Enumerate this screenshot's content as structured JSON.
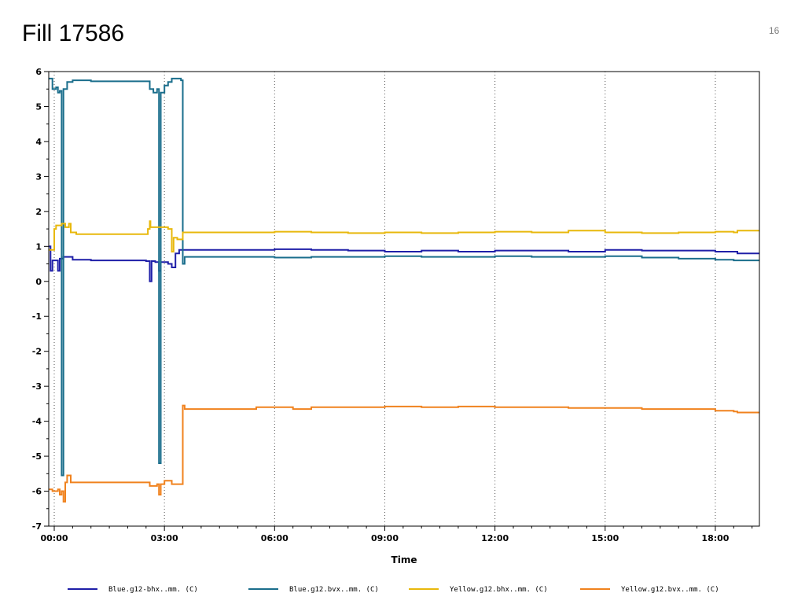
{
  "slide": {
    "title": "Fill 17586",
    "page_number": "16"
  },
  "chart_data": {
    "type": "line",
    "title": "",
    "xlabel": "Time",
    "ylabel": "",
    "x_unit": "hours",
    "xlim": [
      -0.15,
      19.2
    ],
    "ylim": [
      -7,
      6
    ],
    "x_ticks": [
      0,
      3,
      6,
      9,
      12,
      15,
      18
    ],
    "x_tick_labels": [
      "00:00",
      "03:00",
      "06:00",
      "09:00",
      "12:00",
      "15:00",
      "18:00"
    ],
    "y_ticks": [
      -7,
      -6,
      -5,
      -4,
      -3,
      -2,
      -1,
      0,
      1,
      2,
      3,
      4,
      5,
      6
    ],
    "y_tick_labels": [
      "-7",
      "-6",
      "-5",
      "-4",
      "-3",
      "-2",
      "-1",
      "0",
      "1",
      "2",
      "3",
      "4",
      "5",
      "6"
    ],
    "grid": "vertical-dotted",
    "legend_position": "bottom",
    "series": [
      {
        "name": "Blue.g12-bhx..mm. (C)",
        "color": "#1f1fa8",
        "points": [
          [
            -0.15,
            1.0
          ],
          [
            -0.1,
            0.3
          ],
          [
            -0.05,
            0.6
          ],
          [
            0.05,
            0.6
          ],
          [
            0.1,
            0.3
          ],
          [
            0.15,
            0.65
          ],
          [
            0.25,
            0.7
          ],
          [
            0.5,
            0.62
          ],
          [
            1.0,
            0.6
          ],
          [
            2.0,
            0.6
          ],
          [
            2.5,
            0.58
          ],
          [
            2.6,
            0.0
          ],
          [
            2.65,
            0.58
          ],
          [
            2.75,
            0.55
          ],
          [
            2.85,
            0.3
          ],
          [
            2.9,
            0.55
          ],
          [
            3.1,
            0.5
          ],
          [
            3.2,
            0.4
          ],
          [
            3.3,
            0.8
          ],
          [
            3.4,
            0.9
          ],
          [
            4.0,
            0.9
          ],
          [
            5.0,
            0.9
          ],
          [
            6.0,
            0.92
          ],
          [
            7.0,
            0.9
          ],
          [
            8.0,
            0.88
          ],
          [
            9.0,
            0.85
          ],
          [
            10.0,
            0.88
          ],
          [
            11.0,
            0.85
          ],
          [
            12.0,
            0.88
          ],
          [
            13.0,
            0.88
          ],
          [
            14.0,
            0.85
          ],
          [
            15.0,
            0.9
          ],
          [
            16.0,
            0.88
          ],
          [
            17.0,
            0.88
          ],
          [
            18.0,
            0.85
          ],
          [
            18.5,
            0.85
          ],
          [
            18.6,
            0.8
          ],
          [
            19.2,
            0.8
          ]
        ]
      },
      {
        "name": "Blue.g12.bvx..mm. (C)",
        "color": "#1a6e8c",
        "points": [
          [
            -0.15,
            5.8
          ],
          [
            -0.05,
            5.5
          ],
          [
            0.05,
            5.55
          ],
          [
            0.1,
            5.4
          ],
          [
            0.15,
            5.45
          ],
          [
            0.2,
            -5.55
          ],
          [
            0.25,
            5.5
          ],
          [
            0.35,
            5.7
          ],
          [
            0.45,
            5.7
          ],
          [
            0.5,
            5.75
          ],
          [
            1.0,
            5.72
          ],
          [
            2.0,
            5.72
          ],
          [
            2.5,
            5.72
          ],
          [
            2.6,
            5.5
          ],
          [
            2.7,
            5.4
          ],
          [
            2.8,
            5.5
          ],
          [
            2.85,
            -5.2
          ],
          [
            2.9,
            5.4
          ],
          [
            3.0,
            5.6
          ],
          [
            3.1,
            5.7
          ],
          [
            3.2,
            5.8
          ],
          [
            3.45,
            5.75
          ],
          [
            3.5,
            0.5
          ],
          [
            3.55,
            0.7
          ],
          [
            4.0,
            0.7
          ],
          [
            5.0,
            0.7
          ],
          [
            6.0,
            0.68
          ],
          [
            7.0,
            0.7
          ],
          [
            8.0,
            0.7
          ],
          [
            9.0,
            0.72
          ],
          [
            10.0,
            0.7
          ],
          [
            11.0,
            0.7
          ],
          [
            12.0,
            0.72
          ],
          [
            13.0,
            0.7
          ],
          [
            14.0,
            0.7
          ],
          [
            15.0,
            0.72
          ],
          [
            16.0,
            0.68
          ],
          [
            17.0,
            0.65
          ],
          [
            18.0,
            0.62
          ],
          [
            18.5,
            0.6
          ],
          [
            19.2,
            0.6
          ]
        ]
      },
      {
        "name": "Yellow.g12.bhx..mm. (C)",
        "color": "#e8b80c",
        "points": [
          [
            -0.15,
            0.9
          ],
          [
            -0.05,
            0.9
          ],
          [
            0.0,
            1.5
          ],
          [
            0.05,
            1.6
          ],
          [
            0.2,
            1.65
          ],
          [
            0.3,
            1.55
          ],
          [
            0.4,
            1.65
          ],
          [
            0.45,
            1.4
          ],
          [
            0.6,
            1.35
          ],
          [
            1.0,
            1.35
          ],
          [
            2.0,
            1.35
          ],
          [
            2.5,
            1.35
          ],
          [
            2.55,
            1.5
          ],
          [
            2.6,
            1.72
          ],
          [
            2.62,
            1.55
          ],
          [
            3.0,
            1.55
          ],
          [
            3.1,
            1.5
          ],
          [
            3.2,
            0.85
          ],
          [
            3.25,
            1.25
          ],
          [
            3.35,
            1.2
          ],
          [
            3.5,
            1.4
          ],
          [
            4.0,
            1.4
          ],
          [
            5.0,
            1.4
          ],
          [
            6.0,
            1.42
          ],
          [
            7.0,
            1.4
          ],
          [
            8.0,
            1.38
          ],
          [
            9.0,
            1.4
          ],
          [
            10.0,
            1.38
          ],
          [
            11.0,
            1.4
          ],
          [
            12.0,
            1.42
          ],
          [
            13.0,
            1.4
          ],
          [
            14.0,
            1.45
          ],
          [
            15.0,
            1.4
          ],
          [
            16.0,
            1.38
          ],
          [
            17.0,
            1.4
          ],
          [
            18.0,
            1.42
          ],
          [
            18.5,
            1.4
          ],
          [
            18.6,
            1.45
          ],
          [
            19.2,
            1.45
          ]
        ]
      },
      {
        "name": "Yellow.g12.bvx..mm. (C)",
        "color": "#f0821e",
        "points": [
          [
            -0.15,
            -5.95
          ],
          [
            -0.05,
            -6.0
          ],
          [
            0.1,
            -5.95
          ],
          [
            0.15,
            -6.1
          ],
          [
            0.2,
            -6.0
          ],
          [
            0.25,
            -6.3
          ],
          [
            0.3,
            -5.75
          ],
          [
            0.35,
            -5.55
          ],
          [
            0.45,
            -5.75
          ],
          [
            1.0,
            -5.75
          ],
          [
            2.0,
            -5.75
          ],
          [
            2.5,
            -5.75
          ],
          [
            2.6,
            -5.85
          ],
          [
            2.8,
            -5.8
          ],
          [
            2.85,
            -6.1
          ],
          [
            2.9,
            -5.8
          ],
          [
            3.0,
            -5.7
          ],
          [
            3.1,
            -5.7
          ],
          [
            3.2,
            -5.8
          ],
          [
            3.45,
            -5.8
          ],
          [
            3.5,
            -3.55
          ],
          [
            3.55,
            -3.65
          ],
          [
            4.0,
            -3.65
          ],
          [
            5.0,
            -3.65
          ],
          [
            5.5,
            -3.6
          ],
          [
            6.0,
            -3.6
          ],
          [
            6.5,
            -3.65
          ],
          [
            7.0,
            -3.6
          ],
          [
            8.0,
            -3.6
          ],
          [
            9.0,
            -3.58
          ],
          [
            10.0,
            -3.6
          ],
          [
            11.0,
            -3.58
          ],
          [
            12.0,
            -3.6
          ],
          [
            13.0,
            -3.6
          ],
          [
            14.0,
            -3.62
          ],
          [
            15.0,
            -3.62
          ],
          [
            16.0,
            -3.65
          ],
          [
            17.0,
            -3.65
          ],
          [
            18.0,
            -3.7
          ],
          [
            18.5,
            -3.72
          ],
          [
            18.6,
            -3.75
          ],
          [
            19.2,
            -3.75
          ]
        ]
      }
    ]
  }
}
